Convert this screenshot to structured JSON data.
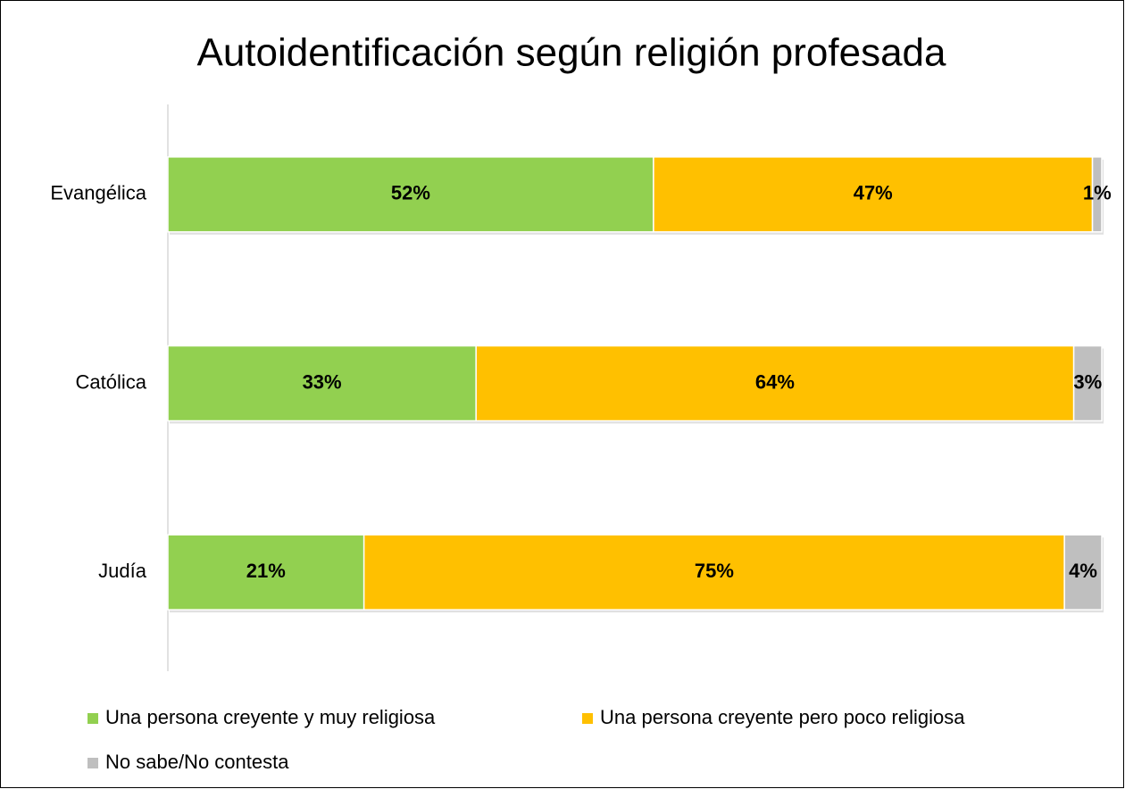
{
  "chart_data": {
    "type": "stacked-bar-horizontal",
    "title": "Autoidentificación según religión profesada",
    "categories": [
      "Evangélica",
      "Católica",
      "Judía"
    ],
    "series": [
      {
        "name": "Una persona creyente y muy religiosa",
        "color": "#92d050",
        "values": [
          52,
          33,
          21
        ],
        "value_labels": [
          "52%",
          "33%",
          "21%"
        ]
      },
      {
        "name": "Una persona creyente pero poco religiosa",
        "color": "#ffc000",
        "values": [
          47,
          64,
          75
        ],
        "value_labels": [
          "47%",
          "64%",
          "75%"
        ]
      },
      {
        "name": "No sabe/No contesta",
        "color": "#bfbfbf",
        "values": [
          1,
          3,
          4
        ],
        "value_labels": [
          "1%",
          "3%",
          "4%"
        ]
      }
    ],
    "xlim": [
      0,
      100
    ]
  }
}
